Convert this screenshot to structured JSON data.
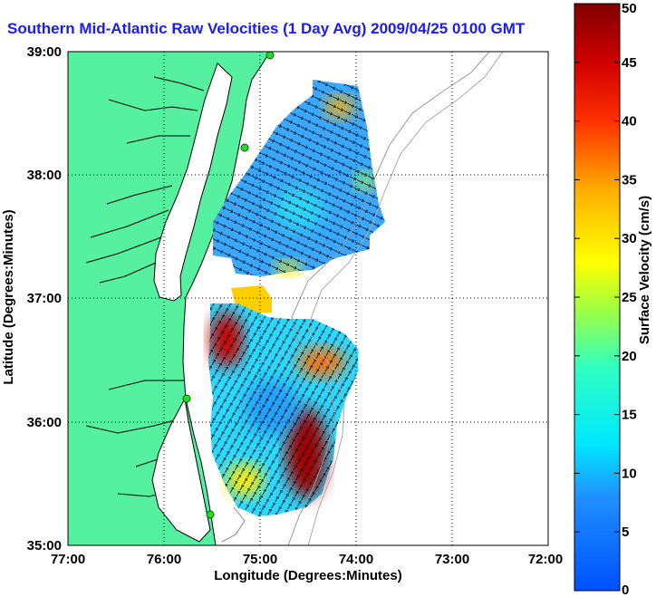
{
  "title": "Southern Mid-Atlantic Raw Velocities (1 Day Avg) 2009/04/25 0100 GMT",
  "xlabel": "Longitude (Degrees:Minutes)",
  "ylabel": "Latitude (Degrees:Minutes)",
  "x_ticks": [
    "77:00",
    "76:00",
    "75:00",
    "74:00",
    "73:00",
    "72:00"
  ],
  "y_ticks": [
    "39:00",
    "38:00",
    "37:00",
    "36:00",
    "35:00"
  ],
  "colorbar": {
    "label": "Surface Velocity (cm/s)",
    "ticks": [
      "0",
      "5",
      "10",
      "15",
      "20",
      "25",
      "30",
      "35",
      "40",
      "45",
      "50"
    ],
    "min": 0,
    "max": 50
  },
  "colors": {
    "land": "#55f0a0",
    "title": "#1a1aff",
    "stations": "#22dd22"
  }
}
